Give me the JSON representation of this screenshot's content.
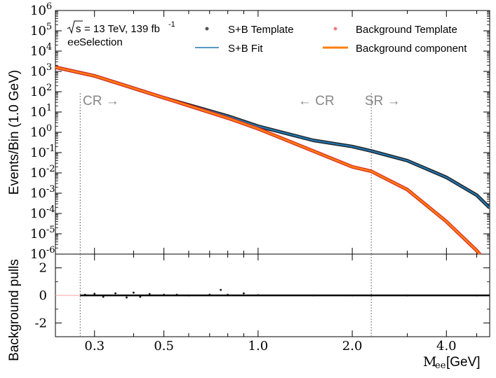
{
  "figure": {
    "legend": {
      "energy_text": "= 13 TeV, 139 fb",
      "lumi_exp": "-1",
      "sqrt_s": "s",
      "selection_prefix": "ee",
      "selection_suffix": " Selection",
      "entries": [
        {
          "label": "S+B Template",
          "marker": "dot",
          "color": "#555555"
        },
        {
          "label": "S+B Fit",
          "marker": "line",
          "color": "#1f77b4"
        },
        {
          "label": "Background Template",
          "marker": "dot",
          "color": "#f08080"
        },
        {
          "label": "Background component",
          "marker": "thick-line",
          "color": "#ff7f0e"
        }
      ]
    },
    "region_labels": {
      "cr_left": "CR →",
      "cr_right": "← CR",
      "sr": "SR →"
    },
    "top_ylabel": "Events/Bin (1.0 GeV)",
    "bottom_ylabel": "Background pulls",
    "xlabel_math": "M",
    "xlabel_sub": "ee",
    "xlabel_unit": " [GeV]"
  },
  "chart_data": [
    {
      "type": "line",
      "panel": "main",
      "x_scale": "log",
      "y_scale": "log",
      "xlim": [
        0.225,
        5.5
      ],
      "ylim": [
        1e-06,
        1000000.0
      ],
      "xticks": [
        "0.3",
        "0.5",
        "1.0",
        "2.0",
        "4.0"
      ],
      "xtick_values": [
        0.3,
        0.5,
        1.0,
        2.0,
        4.0
      ],
      "yticks": [
        {
          "base": "10",
          "exp": "-6"
        },
        {
          "base": "10",
          "exp": "-5"
        },
        {
          "base": "10",
          "exp": "-4"
        },
        {
          "base": "10",
          "exp": "-3"
        },
        {
          "base": "10",
          "exp": "-2"
        },
        {
          "base": "10",
          "exp": "-1"
        },
        {
          "base": "10",
          "exp": "0"
        },
        {
          "base": "10",
          "exp": "1"
        },
        {
          "base": "10",
          "exp": "2"
        },
        {
          "base": "10",
          "exp": "3"
        },
        {
          "base": "10",
          "exp": "4"
        },
        {
          "base": "10",
          "exp": "5"
        },
        {
          "base": "10",
          "exp": "6"
        }
      ],
      "ytick_values": [
        -6,
        -5,
        -4,
        -3,
        -2,
        -1,
        0,
        1,
        2,
        3,
        4,
        5,
        6
      ],
      "cr_boundary_low": 0.27,
      "sr_boundary": 2.3,
      "series": [
        {
          "name": "S+B Template",
          "color": "#222222",
          "x": [
            0.225,
            0.3,
            0.5,
            0.8,
            1.0,
            1.5,
            2.0,
            2.3,
            3.0,
            4.0,
            5.0,
            5.5
          ],
          "y": [
            1600.0,
            600.0,
            50.0,
            6.3,
            2.0,
            0.4,
            0.2,
            0.12,
            0.04,
            0.006,
            0.0008,
            0.00019
          ]
        },
        {
          "name": "S+B Fit",
          "color": "#1f77b4",
          "x": [
            0.225,
            0.3,
            0.5,
            0.8,
            1.0,
            1.5,
            2.0,
            2.3,
            3.0,
            4.0,
            5.0,
            5.5
          ],
          "y": [
            1600.0,
            600.0,
            50.0,
            6.3,
            2.0,
            0.4,
            0.2,
            0.12,
            0.04,
            0.006,
            0.0008,
            0.00019
          ]
        },
        {
          "name": "Background Template",
          "color": "#d62728",
          "x": [
            0.225,
            0.3,
            0.5,
            0.8,
            1.0,
            1.5,
            2.0,
            2.3,
            3.0,
            4.0,
            5.0,
            5.5
          ],
          "y": [
            1600.0,
            600.0,
            50.0,
            5.0,
            1.5,
            0.12,
            0.02,
            0.012,
            0.0015,
            4e-05,
            1.5e-06,
            2.5e-07
          ]
        },
        {
          "name": "Background component",
          "color": "#ff7f0e",
          "x": [
            0.225,
            0.3,
            0.5,
            0.8,
            1.0,
            1.5,
            2.0,
            2.3,
            3.0,
            4.0,
            5.0,
            5.5
          ],
          "y": [
            1600.0,
            600.0,
            50.0,
            5.0,
            1.5,
            0.12,
            0.02,
            0.012,
            0.0015,
            4e-05,
            1.5e-06,
            2.5e-07
          ]
        }
      ]
    },
    {
      "type": "scatter",
      "panel": "pulls",
      "x_scale": "log",
      "xlim": [
        0.225,
        5.5
      ],
      "ylim": [
        -3,
        3
      ],
      "yticks": [
        "-2",
        "0",
        "2"
      ],
      "ytick_values": [
        -2,
        0,
        2
      ],
      "series": [
        {
          "name": "Background pulls",
          "color": "#111111",
          "x": [
            0.28,
            0.3,
            0.32,
            0.35,
            0.38,
            0.4,
            0.42,
            0.45,
            0.5,
            0.55,
            0.6,
            0.7,
            0.76,
            0.8,
            0.9,
            1.0,
            1.5,
            2.0,
            3.0,
            5.0
          ],
          "y": [
            0.05,
            0.12,
            -0.1,
            0.15,
            -0.15,
            0.2,
            -0.1,
            0.1,
            0.05,
            0.05,
            0.0,
            0.05,
            0.4,
            0.05,
            0.15,
            0.02,
            0.0,
            0.0,
            0.0,
            0.0
          ]
        }
      ]
    }
  ]
}
